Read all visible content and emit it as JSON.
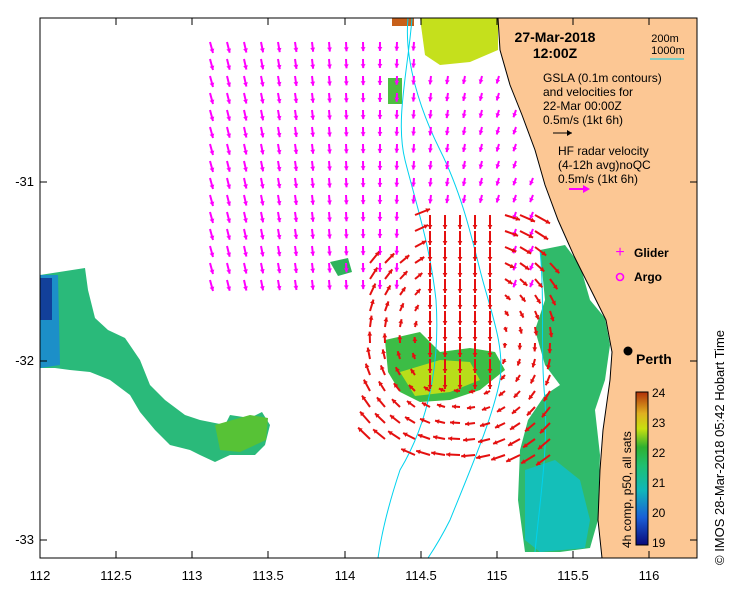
{
  "title": {
    "date": "27-Mar-2018",
    "time": "12:00Z"
  },
  "depth_legend": {
    "line1": "200m",
    "line2": "1000m"
  },
  "gsla": {
    "line1": "GSLA (0.1m contours)",
    "line2": "and velocities for",
    "line3": "22-Mar 00:00Z",
    "scale": "0.5m/s (1kt 6h)"
  },
  "hf": {
    "line1": "HF radar velocity",
    "line2": "(4-12h avg)noQC",
    "scale": "0.5m/s (1kt 6h)"
  },
  "markers": {
    "glider": "Glider",
    "argo": "Argo"
  },
  "place": {
    "city": "Perth"
  },
  "colorbar": {
    "title": "4h comp, p50, all sats",
    "ticks": [
      "24",
      "23",
      "22",
      "21",
      "20",
      "19"
    ]
  },
  "side_label": "© IMOS 28-Mar-2018 05:42 Hobart Time",
  "axes": {
    "x_ticks": [
      "112",
      "112.5",
      "113",
      "113.5",
      "114",
      "114.5",
      "115",
      "115.5",
      "116"
    ],
    "y_ticks": [
      "-31",
      "-32",
      "-33"
    ]
  },
  "colors": {
    "land": "#fcc794",
    "hf_arrows": "#ff00ff",
    "gsla_arrows": "#e41010",
    "isobath": "#00d2ee"
  }
}
